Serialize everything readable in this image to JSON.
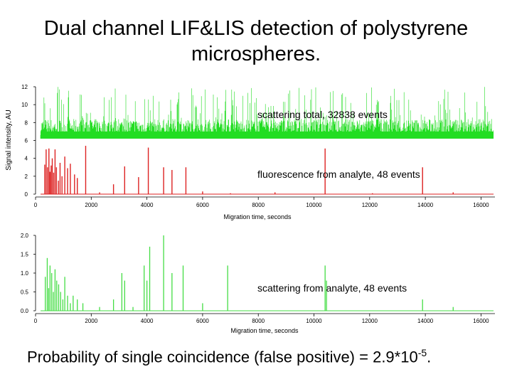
{
  "slide": {
    "title_line1": "Dual channel LIF&LIS detection of polystyrene",
    "title_line2": "microspheres.",
    "footer_text": "Probability of single coincidence (false positive) = 2.9*10",
    "footer_exponent": "-5",
    "footer_period": "."
  },
  "chart_data": [
    {
      "type": "line",
      "ylabel": "Signal intensity, AU",
      "xlabel": "Migration time, seconds",
      "xlim": [
        0,
        16500
      ],
      "ylim": [
        0,
        12
      ],
      "xticks": [
        0,
        2000,
        4000,
        6000,
        8000,
        10000,
        12000,
        14000,
        16000
      ],
      "yticks": [
        0,
        2,
        4,
        6,
        8,
        10,
        12
      ],
      "series": [
        {
          "name": "scattering total, 32838 events",
          "color": "#22dd22",
          "baseline": 6.2,
          "events": 32838
        },
        {
          "name": "fluorescence from analyte, 48 events",
          "color": "#dd2222",
          "baseline": 0,
          "events": 48
        }
      ]
    },
    {
      "type": "line",
      "xlabel": "Migration time, seconds",
      "xlim": [
        0,
        16500
      ],
      "ylim": [
        0,
        2.0
      ],
      "xticks": [
        0,
        2000,
        4000,
        6000,
        8000,
        10000,
        12000,
        14000,
        16000
      ],
      "yticks": [
        0.0,
        0.5,
        1.0,
        1.5,
        2.0
      ],
      "series": [
        {
          "name": "scattering from analyte, 48 events",
          "color": "#44dd44",
          "baseline": 0,
          "events": 48
        }
      ]
    }
  ]
}
